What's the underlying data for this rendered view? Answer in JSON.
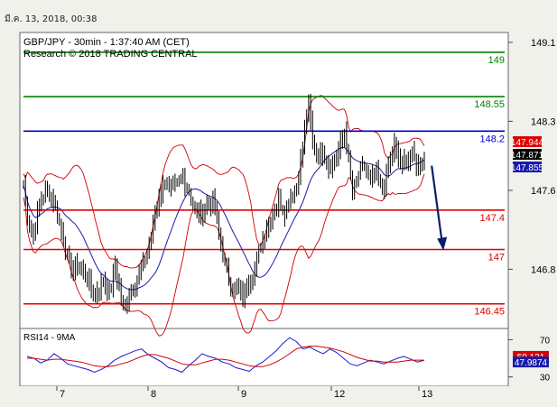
{
  "timestamp": "มี.ค. 13, 2018, 00:38",
  "header": {
    "line1": "GBP/JPY - 30min - 1:37:40 AM (CET)",
    "line2": "Research © 2018 TRADING CENTRAL"
  },
  "colors": {
    "candle": "#000000",
    "bollinger": "#cc0000",
    "moving_average": "#1a1aaa",
    "target_levels": "#008000",
    "pivot": "#0000cc",
    "support_levels": "#e00000",
    "arrow": "#0a1f6b",
    "rsi": "#1a1acc",
    "rsi_ma": "#cc0000",
    "badge_red": "#dd0000",
    "badge_blue": "#1a1aaa"
  },
  "chart_data": [
    {
      "type": "candlestick",
      "title": "GBP/JPY - 30min - 1:37:40 AM (CET)",
      "x_ticks": [
        "7",
        "8",
        "9",
        "12",
        "13"
      ],
      "y_ticks": [
        149.1,
        148.3,
        147.6,
        146.8
      ],
      "ylim": [
        146.2,
        149.2
      ],
      "levels": [
        {
          "name": "149",
          "value": 149.0,
          "kind": "target"
        },
        {
          "name": "148.55",
          "value": 148.55,
          "kind": "target"
        },
        {
          "name": "148.2",
          "value": 148.2,
          "kind": "pivot"
        },
        {
          "name": "147.4",
          "value": 147.4,
          "kind": "support"
        },
        {
          "name": "147",
          "value": 147.0,
          "kind": "support"
        },
        {
          "name": "146.45",
          "value": 146.45,
          "kind": "support"
        }
      ],
      "price_badges": [
        {
          "text": "147.944",
          "value": 147.944,
          "style": "red"
        },
        {
          "text": "147.871",
          "value": 147.871,
          "style": "black"
        },
        {
          "text": "147.855",
          "value": 147.855,
          "style": "blue"
        }
      ],
      "close_path": [
        [
          0,
          147.65
        ],
        [
          2,
          147.35
        ],
        [
          5,
          147.15
        ],
        [
          8,
          147.45
        ],
        [
          11,
          147.6
        ],
        [
          14,
          147.55
        ],
        [
          17,
          147.35
        ],
        [
          20,
          147.1
        ],
        [
          22,
          146.9
        ],
        [
          25,
          146.8
        ],
        [
          28,
          146.85
        ],
        [
          31,
          146.75
        ],
        [
          34,
          146.6
        ],
        [
          37,
          146.55
        ],
        [
          40,
          146.7
        ],
        [
          43,
          146.55
        ],
        [
          46,
          146.85
        ],
        [
          48,
          146.6
        ],
        [
          50,
          146.4
        ],
        [
          53,
          146.55
        ],
        [
          56,
          146.65
        ],
        [
          59,
          146.8
        ],
        [
          62,
          146.95
        ],
        [
          65,
          147.25
        ],
        [
          68,
          147.55
        ],
        [
          71,
          147.7
        ],
        [
          74,
          147.6
        ],
        [
          77,
          147.65
        ],
        [
          80,
          147.75
        ],
        [
          83,
          147.6
        ],
        [
          86,
          147.4
        ],
        [
          89,
          147.35
        ],
        [
          92,
          147.45
        ],
        [
          95,
          147.5
        ],
        [
          97,
          147.3
        ],
        [
          99,
          147.05
        ],
        [
          101,
          146.85
        ],
        [
          104,
          146.65
        ],
        [
          107,
          146.6
        ],
        [
          110,
          146.5
        ],
        [
          113,
          146.7
        ],
        [
          116,
          146.8
        ],
        [
          119,
          147.05
        ],
        [
          122,
          147.25
        ],
        [
          125,
          147.35
        ],
        [
          128,
          147.5
        ],
        [
          131,
          147.4
        ],
        [
          134,
          147.55
        ],
        [
          137,
          147.65
        ],
        [
          140,
          148.0
        ],
        [
          142,
          148.4
        ],
        [
          143,
          148.45
        ],
        [
          145,
          148.1
        ],
        [
          147,
          147.95
        ],
        [
          150,
          148.0
        ],
        [
          153,
          147.85
        ],
        [
          156,
          147.9
        ],
        [
          159,
          148.05
        ],
        [
          161,
          148.2
        ],
        [
          163,
          147.9
        ],
        [
          165,
          147.55
        ],
        [
          168,
          147.75
        ],
        [
          171,
          147.85
        ],
        [
          174,
          147.7
        ],
        [
          177,
          147.75
        ],
        [
          180,
          147.6
        ],
        [
          183,
          147.85
        ],
        [
          186,
          148.05
        ],
        [
          189,
          147.85
        ],
        [
          192,
          147.9
        ],
        [
          195,
          147.95
        ],
        [
          198,
          147.85
        ],
        [
          201,
          147.9
        ]
      ],
      "arrow": {
        "from_index": 202,
        "from_value": 147.85,
        "to_index": 206,
        "to_value": 147.0
      }
    },
    {
      "type": "line",
      "title": "RSI14 - 9MA",
      "y_ticks": [
        70,
        30
      ],
      "ylim": [
        20,
        82
      ],
      "series": [
        {
          "name": "RSI14",
          "values": [
            52,
            50,
            45,
            48,
            55,
            50,
            44,
            42,
            40,
            38,
            35,
            38,
            42,
            48,
            52,
            55,
            58,
            60,
            54,
            50,
            46,
            40,
            38,
            35,
            42,
            48,
            55,
            52,
            50,
            46,
            44,
            40,
            38,
            36,
            42,
            46,
            52,
            58,
            66,
            72,
            68,
            60,
            62,
            58,
            55,
            60,
            56,
            50,
            44,
            42,
            45,
            48,
            46,
            44,
            47,
            50,
            52,
            49,
            46,
            48
          ]
        },
        {
          "name": "9MA",
          "values": [
            50,
            50,
            49,
            48,
            49,
            49,
            48,
            47,
            46,
            44,
            42,
            41,
            41,
            42,
            44,
            46,
            49,
            52,
            54,
            54,
            52,
            50,
            47,
            44,
            43,
            43,
            45,
            47,
            49,
            49,
            48,
            46,
            44,
            42,
            41,
            41,
            43,
            46,
            50,
            55,
            60,
            62,
            63,
            63,
            62,
            61,
            59,
            57,
            54,
            51,
            49,
            47,
            47,
            46,
            46,
            46,
            47,
            48,
            48,
            48
          ]
        }
      ],
      "badges": [
        {
          "text": "50.121",
          "value": 50.121,
          "style": "red"
        },
        {
          "text": "47.9874",
          "value": 47.9874,
          "style": "blue"
        }
      ]
    }
  ]
}
